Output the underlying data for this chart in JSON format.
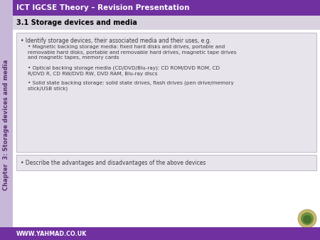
{
  "header_text": "ICT IGCSE Theory – Revision Presentation",
  "header_bg": "#7030A0",
  "header_text_color": "#FFFFFF",
  "section_title": "3.1 Storage devices and media",
  "section_title_bg": "#D9D3E0",
  "section_title_color": "#000000",
  "sidebar_text": "Chapter  3: Storage devices and media",
  "sidebar_bg": "#C8B8D8",
  "sidebar_text_color": "#5B2C6F",
  "content_box_bg": "#E8E4EC",
  "content_box_border": "#B8B0C0",
  "main_bg": "#FFFFFF",
  "footer_bg": "#7030A0",
  "footer_text": "WWW.YAHMAD.CO.UK",
  "footer_text_color": "#FFFFFF",
  "bullet1": "Identify storage devices, their associated media and their uses, e.g.",
  "sub_bullet1": "Magnetic backing storage media: fixed hard disks and drives, portable and\nremovable hard disks, portable and removable hard drives, magnetic tape drives\nand magnetic tapes, memory cards",
  "sub_bullet2": "Optical backing storage media (CD/DVD/Blu-ray): CD ROM/DVD ROM, CD\nR/DVD R, CD RW/DVD RW, DVD RAM, Blu-ray discs",
  "sub_bullet3": "Solid state backing storage: solid state drives, flash drives (pen drive/memory\nstick/USB stick)",
  "bullet2": "Describe the advantages and disadvantages of the above devices",
  "text_color": "#3A3A3A",
  "font_size_header": 7.5,
  "font_size_section": 7.0,
  "font_size_content": 5.5,
  "font_size_sub": 5.2,
  "font_size_sidebar": 6.0,
  "font_size_footer": 5.8,
  "fig_w": 4.5,
  "fig_h": 3.38,
  "dpi": 100
}
